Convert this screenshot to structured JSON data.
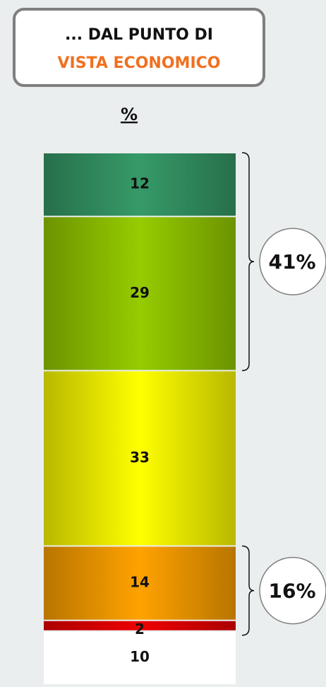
{
  "chart_data": {
    "type": "stacked_bar",
    "title": [
      "... DAL PUNTO DI",
      "VISTA ECONOMICO"
    ],
    "unit_label": "%",
    "ylim": [
      0,
      100
    ],
    "series": [
      {
        "color": "#ffffff",
        "values": [
          10
        ]
      },
      {
        "color": "#ee0000",
        "values": [
          2
        ]
      },
      {
        "color": "#ffa200",
        "values": [
          14
        ]
      },
      {
        "color": "#ffff00",
        "values": [
          33
        ]
      },
      {
        "color": "#96cc00",
        "values": [
          29
        ]
      },
      {
        "color": "#369a68",
        "values": [
          12
        ]
      }
    ],
    "annotations": [
      "41%",
      "16%"
    ]
  }
}
